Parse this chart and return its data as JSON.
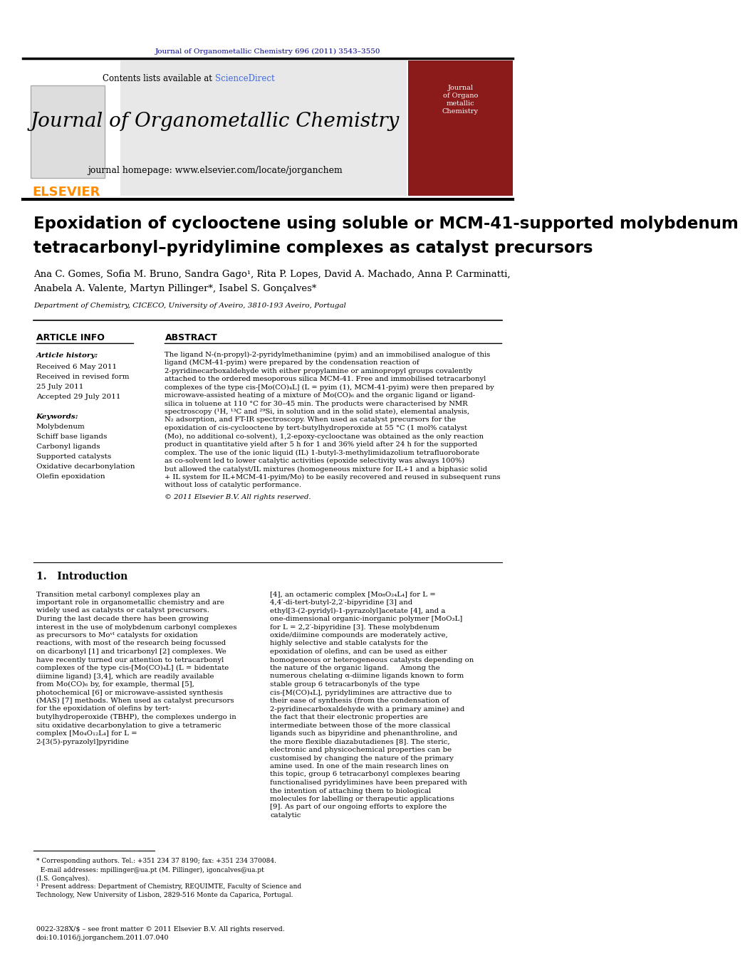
{
  "page_bg": "#ffffff",
  "top_citation": "Journal of Organometallic Chemistry 696 (2011) 3543–3550",
  "top_citation_color": "#00008B",
  "header_bg": "#e8e8e8",
  "header_journal_title": "Journal of Organometallic Chemistry",
  "header_homepage": "journal homepage: www.elsevier.com/locate/jorganchem",
  "elsevier_color": "#FF8C00",
  "sciencedirect_color": "#4169E1",
  "contents_text": "Contents lists available at ScienceDirect",
  "paper_title": "Epoxidation of cyclooctene using soluble or MCM-41-supported molybdenum\ntetracarbonyl–pyridylimine complexes as catalyst precursors",
  "authors": "Ana C. Gomes, Sofia M. Bruno, Sandra Gago¹, Rita P. Lopes, David A. Machado, Anna P. Carminatti,\nAnabela A. Valente, Martyn Pillinger*, Isabel S. Gonçalves*",
  "affiliation": "Department of Chemistry, CICECO, University of Aveiro, 3810-193 Aveiro, Portugal",
  "article_info_title": "ARTICLE INFO",
  "abstract_title": "ABSTRACT",
  "article_history_title": "Article history:",
  "received": "Received 6 May 2011",
  "received_revised": "Received in revised form\n25 July 2011",
  "accepted": "Accepted 29 July 2011",
  "keywords_title": "Keywords:",
  "keywords": [
    "Molybdenum",
    "Schiff base ligands",
    "Carbonyl ligands",
    "Supported catalysts",
    "Oxidative decarbonylation",
    "Olefin epoxidation"
  ],
  "abstract_text": "The ligand N-(n-propyl)-2-pyridylmethanimine (pyim) and an immobilised analogue of this ligand (MCM-41-pyim) were prepared by the condensation reaction of 2-pyridinecarboxaldehyde with either propylamine or aminopropyl groups covalently attached to the ordered mesoporous silica MCM-41. Free and immobilised tetracarbonyl complexes of the type cis-[Mo(CO)₄L] (L = pyim (1), MCM-41-pyim) were then prepared by microwave-assisted heating of a mixture of Mo(CO)₆ and the organic ligand or ligand-silica in toluene at 110 °C for 30–45 min. The products were characterised by NMR spectroscopy (¹H, ¹³C and ²⁹Si, in solution and in the solid state), elemental analysis, N₂ adsorption, and FT-IR spectroscopy. When used as catalyst precursors for the epoxidation of cis-cyclooctene by tert-butylhydroperoxide at 55 °C (1 mol% catalyst (Mo), no additional co-solvent), 1,2-epoxy-cyclooctane was obtained as the only reaction product in quantitative yield after 5 h for 1 and 36% yield after 24 h for the supported complex. The use of the ionic liquid (IL) 1-butyl-3-methylimidazolium tetrafluoroborate as co-solvent led to lower catalytic activities (epoxide selectivity was always 100%) but allowed the catalyst/IL mixtures (homogeneous mixture for IL+1 and a biphasic solid + IL system for IL+MCM-41-pyim/Mo) to be easily recovered and reused in subsequent runs without loss of catalytic performance.",
  "copyright": "© 2011 Elsevier B.V. All rights reserved.",
  "intro_title": "1.   Introduction",
  "intro_text_col1": "Transition metal carbonyl complexes play an important role in organometallic chemistry and are widely used as catalysts or catalyst precursors. During the last decade there has been growing interest in the use of molybdenum carbonyl complexes as precursors to Moᵛᴵ catalysts for oxidation reactions, with most of the research being focussed on dicarbonyl [1] and tricarbonyl [2] complexes. We have recently turned our attention to tetracarbonyl complexes of the type cis-[Mo(CO)₄L] (L = bidentate diimine ligand) [3,4], which are readily available from Mo(CO)₆ by, for example, thermal [5], photochemical [6] or microwave-assisted synthesis (MAS) [7] methods. When used as catalyst precursors for the epoxidation of olefins by tert-butylhydroperoxide (TBHP), the complexes undergo in situ oxidative decarbonylation to give a tetrameric complex [Mo₄O₁₂L₄] for L = 2-[3(5)-pyrazolyl]pyridine",
  "intro_text_col2": "[4], an octameric complex [Mo₈O₂₄L₄] for L = 4,4′-di-tert-butyl-2,2′-bipyridine [3] and ethyl[3-(2-pyridyl)-1-pyrazolyl]acetate [4], and a one-dimensional organic-inorganic polymer [MoO₃L] for L = 2,2′-bipyridine [3]. These molybdenum oxide/diimine compounds are moderately active, highly selective and stable catalysts for the epoxidation of olefins, and can be used as either homogeneous or heterogeneous catalysts depending on the nature of the organic ligand.\n    Among the numerous chelating α-diimine ligands known to form stable group 6 tetracarbonyls of the type cis-[M(CO)₄L], pyridylimines are attractive due to their ease of synthesis (from the condensation of 2-pyridinecarboxaldehyde with a primary amine) and the fact that their electronic properties are intermediate between those of the more classical ligands such as bipyridine and phenanthroline, and the more flexible diazabutadienes [8]. The steric, electronic and physicochemical properties can be customised by changing the nature of the primary amine used. In one of the main research lines on this topic, group 6 tetracarbonyl complexes bearing functionalised pyridylimines have been prepared with the intention of attaching them to biological molecules for labelling or therapeutic applications [9]. As part of our ongoing efforts to explore the catalytic",
  "footnote_text": "* Corresponding authors. Tel.: +351 234 37 8190; fax: +351 234 370084.\n  E-mail addresses: mpillinger@ua.pt (M. Pillinger), igoncalves@ua.pt\n(I.S. Gonçalves).\n¹ Present address: Department of Chemistry, REQUIMTE, Faculty of Science and\nTechnology, New University of Lisbon, 2829-516 Monte da Caparica, Portugal.",
  "bottom_text": "0022-328X/$ – see front matter © 2011 Elsevier B.V. All rights reserved.\ndoi:10.1016/j.jorganchem.2011.07.040"
}
